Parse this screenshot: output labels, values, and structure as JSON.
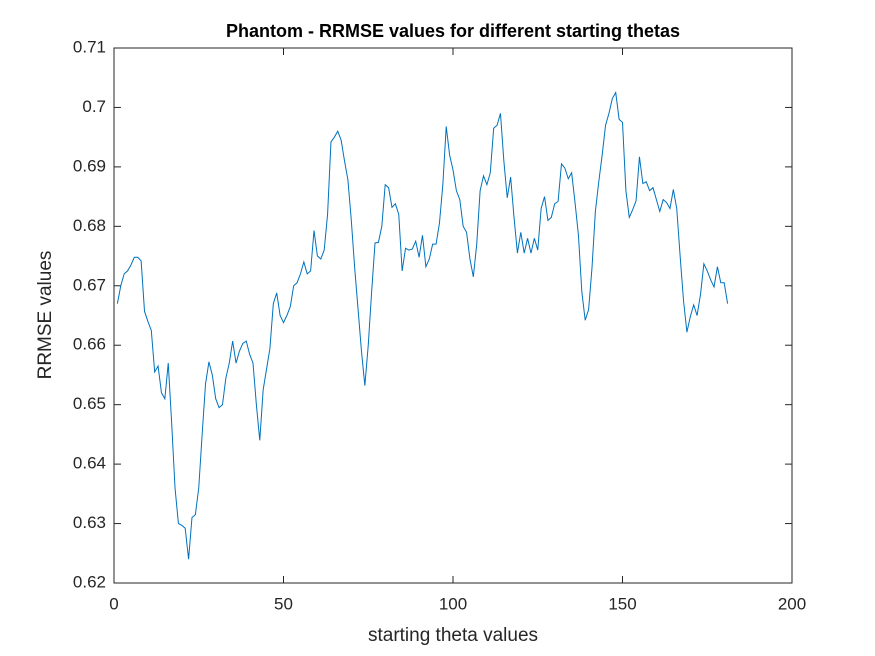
{
  "chart_data": {
    "type": "line",
    "title": "Phantom - RRMSE values for different starting thetas",
    "xlabel": "starting theta values",
    "ylabel": "RRMSE values",
    "color": "#0072bd",
    "xlim": [
      0,
      200
    ],
    "xticks": [
      0,
      50,
      100,
      150,
      200
    ],
    "ylim": [
      0.62,
      0.71
    ],
    "yticks": [
      0.62,
      0.63,
      0.64,
      0.65,
      0.66,
      0.67,
      0.68,
      0.69,
      0.7,
      0.71
    ],
    "x": [
      1,
      2,
      3,
      4,
      5,
      6,
      7,
      8,
      9,
      10,
      11,
      12,
      13,
      14,
      15,
      16,
      17,
      18,
      19,
      20,
      21,
      22,
      23,
      24,
      25,
      26,
      27,
      28,
      29,
      30,
      31,
      32,
      33,
      34,
      35,
      36,
      37,
      38,
      39,
      40,
      41,
      42,
      43,
      44,
      45,
      46,
      47,
      48,
      49,
      50,
      51,
      52,
      53,
      54,
      55,
      56,
      57,
      58,
      59,
      60,
      61,
      62,
      63,
      64,
      65,
      66,
      67,
      68,
      69,
      70,
      71,
      72,
      73,
      74,
      75,
      76,
      77,
      78,
      79,
      80,
      81,
      82,
      83,
      84,
      85,
      86,
      87,
      88,
      89,
      90,
      91,
      92,
      93,
      94,
      95,
      96,
      97,
      98,
      99,
      100,
      101,
      102,
      103,
      104,
      105,
      106,
      107,
      108,
      109,
      110,
      111,
      112,
      113,
      114,
      115,
      116,
      117,
      118,
      119,
      120,
      121,
      122,
      123,
      124,
      125,
      126,
      127,
      128,
      129,
      130,
      131,
      132,
      133,
      134,
      135,
      136,
      137,
      138,
      139,
      140,
      141,
      142,
      143,
      144,
      145,
      146,
      147,
      148,
      149,
      150,
      151,
      152,
      153,
      154,
      155,
      156,
      157,
      158,
      159,
      160,
      161,
      162,
      163,
      164,
      165,
      166,
      167,
      168,
      169,
      170,
      171,
      172,
      173,
      174,
      175,
      176,
      177,
      178,
      179,
      180,
      181
    ],
    "values": [
      0.667,
      0.67,
      0.672,
      0.6725,
      0.6735,
      0.6748,
      0.6748,
      0.6742,
      0.6657,
      0.664,
      0.6625,
      0.6555,
      0.6565,
      0.652,
      0.651,
      0.657,
      0.647,
      0.636,
      0.63,
      0.6297,
      0.6292,
      0.624,
      0.631,
      0.6315,
      0.636,
      0.645,
      0.6535,
      0.6572,
      0.655,
      0.651,
      0.6495,
      0.65,
      0.6545,
      0.657,
      0.6607,
      0.657,
      0.659,
      0.6603,
      0.6607,
      0.6585,
      0.657,
      0.65,
      0.644,
      0.6525,
      0.656,
      0.6595,
      0.667,
      0.6688,
      0.665,
      0.6638,
      0.665,
      0.6665,
      0.67,
      0.6705,
      0.672,
      0.674,
      0.672,
      0.6725,
      0.6793,
      0.675,
      0.6745,
      0.676,
      0.682,
      0.6942,
      0.695,
      0.696,
      0.6945,
      0.691,
      0.6878,
      0.681,
      0.673,
      0.666,
      0.659,
      0.6532,
      0.66,
      0.669,
      0.6772,
      0.6773,
      0.68,
      0.687,
      0.6865,
      0.6832,
      0.6838,
      0.682,
      0.6725,
      0.6763,
      0.676,
      0.6762,
      0.6775,
      0.6748,
      0.6785,
      0.6732,
      0.6745,
      0.677,
      0.677,
      0.6805,
      0.687,
      0.6968,
      0.692,
      0.6895,
      0.686,
      0.6845,
      0.68,
      0.679,
      0.6745,
      0.6715,
      0.677,
      0.686,
      0.6885,
      0.687,
      0.689,
      0.6965,
      0.697,
      0.699,
      0.691,
      0.6848,
      0.6883,
      0.6815,
      0.6755,
      0.679,
      0.6755,
      0.678,
      0.6755,
      0.678,
      0.676,
      0.683,
      0.685,
      0.681,
      0.6815,
      0.6838,
      0.6842,
      0.6905,
      0.6898,
      0.688,
      0.689,
      0.684,
      0.6785,
      0.669,
      0.6642,
      0.666,
      0.673,
      0.6825,
      0.6875,
      0.692,
      0.697,
      0.699,
      0.7015,
      0.7025,
      0.698,
      0.6975,
      0.686,
      0.6815,
      0.6828,
      0.6843,
      0.6917,
      0.6872,
      0.6875,
      0.686,
      0.6865,
      0.6845,
      0.6825,
      0.6845,
      0.684,
      0.683,
      0.6862,
      0.683,
      0.675,
      0.6675,
      0.6622,
      0.6648,
      0.6668,
      0.665,
      0.6685,
      0.6737,
      0.6725,
      0.671,
      0.6698,
      0.6732,
      0.6705,
      0.6705,
      0.667
    ]
  }
}
